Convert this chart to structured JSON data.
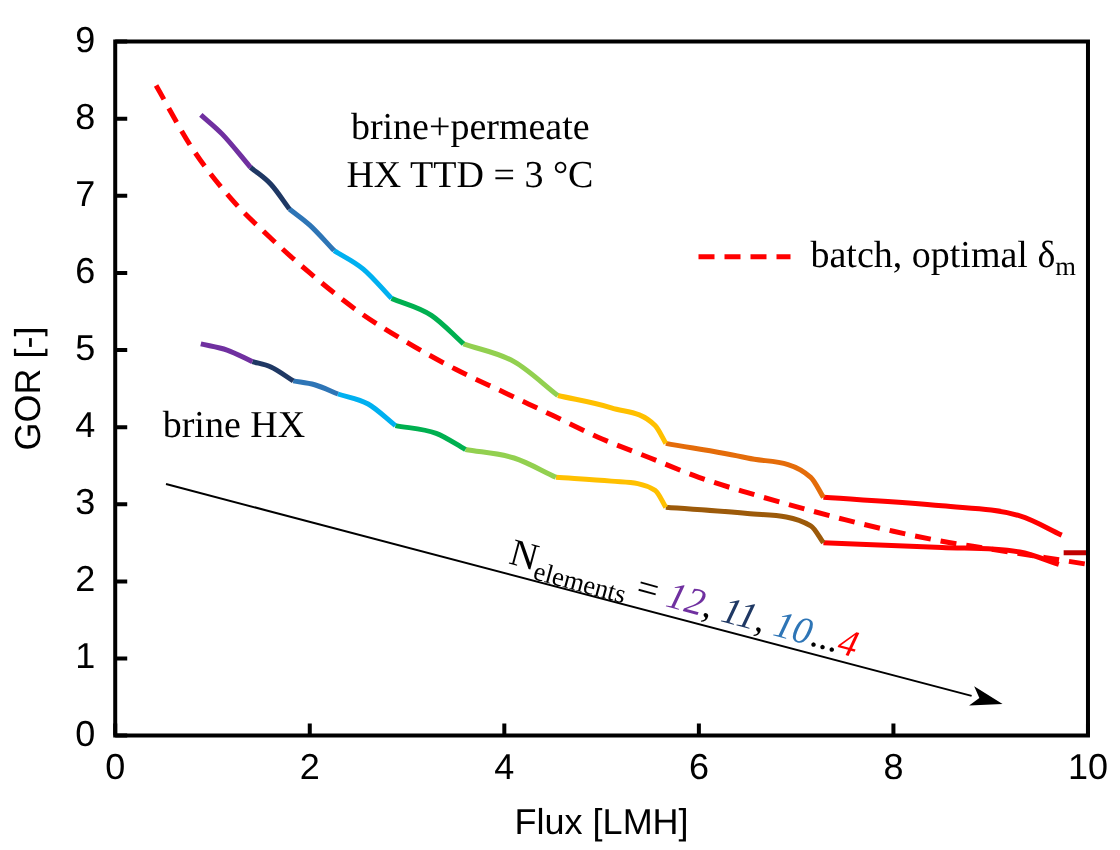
{
  "chart_data": {
    "type": "line",
    "xlabel": "Flux [LMH]",
    "ylabel": "GOR [-]",
    "xlim": [
      0,
      10
    ],
    "ylim": [
      0,
      9
    ],
    "xticks": [
      0,
      2,
      4,
      6,
      8,
      10
    ],
    "yticks": [
      0,
      1,
      2,
      3,
      4,
      5,
      6,
      7,
      8,
      9
    ],
    "grid": false,
    "legend": "right",
    "marker": "none",
    "line_style": "solid",
    "series": [
      {
        "color": "#7030a0",
        "x": [
          0.88,
          1.1,
          1.39
        ],
        "values": [
          8.05,
          7.8,
          7.37
        ]
      },
      {
        "color": "#1f3864",
        "x": [
          1.39,
          1.6,
          1.79
        ],
        "values": [
          7.37,
          7.15,
          6.83
        ]
      },
      {
        "color": "#2e75b6",
        "x": [
          1.79,
          2.0,
          2.25
        ],
        "values": [
          6.83,
          6.62,
          6.29
        ]
      },
      {
        "color": "#00b0f0",
        "x": [
          2.25,
          2.55,
          2.84
        ],
        "values": [
          6.29,
          6.05,
          5.67
        ]
      },
      {
        "color": "#00b050",
        "x": [
          2.84,
          3.25,
          3.58
        ],
        "values": [
          5.67,
          5.45,
          5.08
        ]
      },
      {
        "color": "#92d050",
        "x": [
          3.58,
          4.1,
          4.55
        ],
        "values": [
          5.08,
          4.85,
          4.41
        ]
      },
      {
        "color": "#ffc000",
        "x": [
          4.55,
          5.1,
          5.55,
          5.66
        ],
        "values": [
          4.41,
          4.25,
          4.02,
          3.79
        ]
      },
      {
        "color": "#e46c0a",
        "x": [
          5.66,
          6.5,
          7.15,
          7.28
        ],
        "values": [
          3.79,
          3.6,
          3.35,
          3.09
        ]
      },
      {
        "color": "#ff0000",
        "x": [
          7.28,
          8.5,
          9.3,
          9.73
        ],
        "values": [
          3.09,
          2.98,
          2.85,
          2.6
        ]
      },
      {
        "color": "#c00000",
        "x": [
          9.75,
          10
        ],
        "values": [
          2.37,
          2.37
        ]
      },
      {
        "color": "#7030a0",
        "x": [
          0.88,
          1.15,
          1.41
        ],
        "values": [
          5.08,
          5.0,
          4.85
        ]
      },
      {
        "color": "#1f3864",
        "x": [
          1.41,
          1.6,
          1.83
        ],
        "values": [
          4.85,
          4.78,
          4.6
        ]
      },
      {
        "color": "#2e75b6",
        "x": [
          1.83,
          2.05,
          2.29
        ],
        "values": [
          4.6,
          4.55,
          4.43
        ]
      },
      {
        "color": "#00b0f0",
        "x": [
          2.29,
          2.6,
          2.88
        ],
        "values": [
          4.43,
          4.3,
          4.02
        ]
      },
      {
        "color": "#00b050",
        "x": [
          2.88,
          3.3,
          3.6
        ],
        "values": [
          4.02,
          3.92,
          3.71
        ]
      },
      {
        "color": "#92d050",
        "x": [
          3.6,
          4.1,
          4.53
        ],
        "values": [
          3.71,
          3.6,
          3.35
        ]
      },
      {
        "color": "#ffc000",
        "x": [
          4.53,
          5.1,
          5.55,
          5.66
        ],
        "values": [
          3.35,
          3.3,
          3.18,
          2.96
        ]
      },
      {
        "color": "#9c5a0a",
        "x": [
          5.66,
          6.5,
          7.15,
          7.28
        ],
        "values": [
          2.96,
          2.88,
          2.72,
          2.5
        ]
      },
      {
        "color": "#ff0000",
        "x": [
          7.28,
          8.5,
          9.3,
          9.7
        ],
        "values": [
          2.5,
          2.44,
          2.38,
          2.22
        ]
      },
      {
        "name": "batch, optimal δ$_{m}$",
        "color": "#ff0000",
        "line_style": "dashed",
        "x": [
          0.42,
          0.8,
          1.2,
          1.6,
          2,
          2.5,
          3,
          3.5,
          4,
          4.5,
          5,
          5.5,
          6,
          6.5,
          7,
          7.5,
          8,
          8.5,
          9,
          9.5,
          10
        ],
        "values": [
          8.43,
          7.6,
          6.95,
          6.45,
          6.0,
          5.5,
          5.1,
          4.75,
          4.45,
          4.15,
          3.85,
          3.6,
          3.35,
          3.15,
          2.97,
          2.8,
          2.65,
          2.52,
          2.42,
          2.32,
          2.22
        ]
      }
    ],
    "annotations": [
      "brine+permeate\nHX TTD = 3 °C",
      "brine HX",
      "N$_{elements}$ = 12, 11, 10...4"
    ]
  }
}
